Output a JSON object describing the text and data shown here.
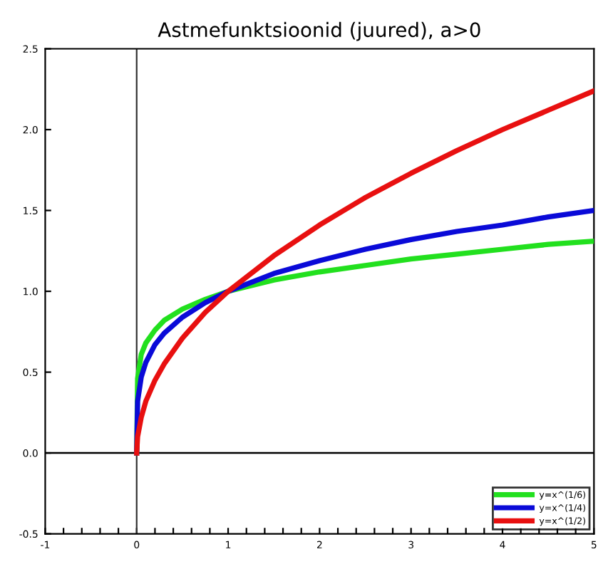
{
  "chart_data": {
    "type": "line",
    "title": "Astmefunktsioonid (juured), a>0",
    "x": [
      0,
      0.01,
      0.05,
      0.1,
      0.2,
      0.3,
      0.5,
      0.75,
      1,
      1.5,
      2,
      2.5,
      3,
      3.5,
      4,
      4.5,
      5
    ],
    "series": [
      {
        "name": "y=x^(1/6)",
        "color": "#22e01e",
        "values": [
          0,
          0.46,
          0.61,
          0.68,
          0.76,
          0.82,
          0.89,
          0.95,
          1,
          1.07,
          1.12,
          1.16,
          1.2,
          1.23,
          1.26,
          1.29,
          1.31
        ]
      },
      {
        "name": "y=x^(1/4)",
        "color": "#0a0ad8",
        "values": [
          0,
          0.32,
          0.47,
          0.56,
          0.67,
          0.74,
          0.84,
          0.93,
          1,
          1.11,
          1.19,
          1.26,
          1.32,
          1.37,
          1.41,
          1.46,
          1.5
        ]
      },
      {
        "name": "y=x^(1/2)",
        "color": "#e81010",
        "values": [
          0,
          0.1,
          0.22,
          0.32,
          0.45,
          0.55,
          0.71,
          0.87,
          1,
          1.22,
          1.41,
          1.58,
          1.73,
          1.87,
          2,
          2.12,
          2.24
        ]
      }
    ],
    "xlim": [
      -1,
      5
    ],
    "ylim": [
      -0.5,
      2.5
    ],
    "xticks": [
      -1,
      {
        "value": -0.8,
        "label": null
      },
      {
        "value": -0.6,
        "label": null
      },
      {
        "value": -0.4,
        "label": null
      },
      {
        "value": -0.2,
        "label": null
      },
      0,
      {
        "value": 0.2,
        "label": null
      },
      {
        "value": 0.4,
        "label": null
      },
      {
        "value": 0.6,
        "label": null
      },
      {
        "value": 0.8,
        "label": null
      },
      1,
      {
        "value": 1.2,
        "label": null
      },
      {
        "value": 1.4,
        "label": null
      },
      {
        "value": 1.6,
        "label": null
      },
      {
        "value": 1.8,
        "label": null
      },
      2,
      {
        "value": 2.2,
        "label": null
      },
      {
        "value": 2.4,
        "label": null
      },
      {
        "value": 2.6,
        "label": null
      },
      {
        "value": 2.8,
        "label": null
      },
      3,
      {
        "value": 3.2,
        "label": null
      },
      {
        "value": 3.4,
        "label": null
      },
      {
        "value": 3.6,
        "label": null
      },
      {
        "value": 3.8,
        "label": null
      },
      4,
      {
        "value": 4.2,
        "label": null
      },
      {
        "value": 4.4,
        "label": null
      },
      {
        "value": 4.6,
        "label": null
      },
      {
        "value": 4.8,
        "label": null
      },
      5
    ],
    "yticks": [
      -0.5,
      {
        "value": 0,
        "label": "0.0"
      },
      0.5,
      {
        "value": 1,
        "label": "1.0"
      },
      1.5,
      {
        "value": 2,
        "label": "2.0"
      },
      2.5
    ],
    "ref_lines": [
      {
        "axis": "x",
        "value": 0,
        "color": "#333333"
      },
      {
        "axis": "y",
        "value": 0,
        "color": "#000000"
      }
    ],
    "legend": "bottom right",
    "grid": false,
    "line_style": "solid",
    "marker": "none"
  }
}
